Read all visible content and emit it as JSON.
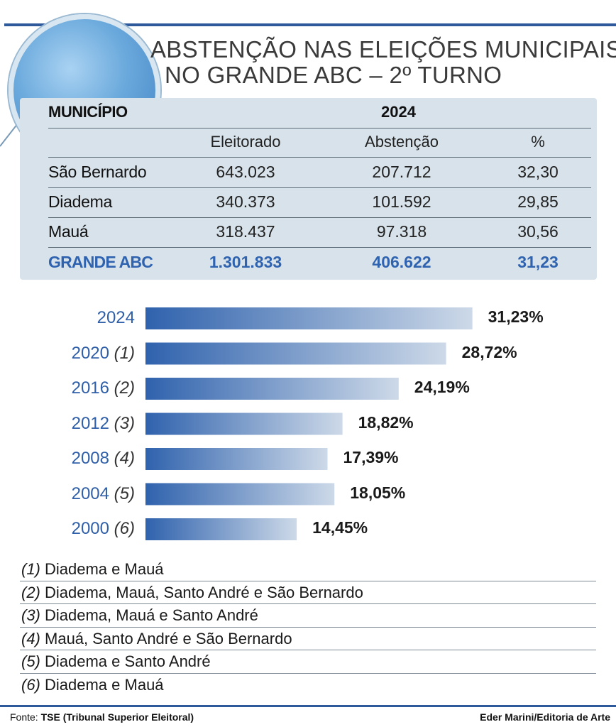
{
  "title_line1": "ABSTENÇÃO NAS ELEIÇÕES MUNICIPAIS",
  "title_line2": "NO GRANDE ABC – 2º TURNO",
  "table": {
    "header_municipio": "MUNICÍPIO",
    "header_year": "2024",
    "columns": [
      "Eleitorado",
      "Abstenção",
      "%"
    ],
    "rows": [
      {
        "name": "São Bernardo",
        "eleitorado": "643.023",
        "abstencao": "207.712",
        "pct": "32,30"
      },
      {
        "name": "Diadema",
        "eleitorado": "340.373",
        "abstencao": "101.592",
        "pct": "29,85"
      },
      {
        "name": "Mauá",
        "eleitorado": "318.437",
        "abstencao": "97.318",
        "pct": "30,56"
      }
    ],
    "total": {
      "name": "GRANDE ABC",
      "eleitorado": "1.301.833",
      "abstencao": "406.622",
      "pct": "31,23"
    }
  },
  "chart_data": {
    "type": "bar",
    "orientation": "horizontal",
    "categories": [
      "2024",
      "2020",
      "2016",
      "2012",
      "2008",
      "2004",
      "2000"
    ],
    "category_notes": [
      "",
      "(1)",
      "(2)",
      "(3)",
      "(4)",
      "(5)",
      "(6)"
    ],
    "values": [
      31.23,
      28.72,
      24.19,
      18.82,
      17.39,
      18.05,
      14.45
    ],
    "value_labels": [
      "31,23%",
      "28,72%",
      "24,19%",
      "18,82%",
      "17,39%",
      "18,05%",
      "14,45%"
    ],
    "bar_color_start": "#2f62ad",
    "bar_color_end": "#cdd9e8",
    "title": "",
    "xlabel": "",
    "ylabel": ""
  },
  "notes": [
    {
      "mark": "(1)",
      "text": "Diadema e Mauá"
    },
    {
      "mark": "(2)",
      "text": "Diadema, Mauá, Santo André e São Bernardo"
    },
    {
      "mark": "(3)",
      "text": "Diadema, Mauá e Santo André"
    },
    {
      "mark": "(4)",
      "text": "Mauá, Santo André e São Bernardo"
    },
    {
      "mark": "(5)",
      "text": "Diadema e Santo André"
    },
    {
      "mark": "(6)",
      "text": "Diadema e Mauá"
    }
  ],
  "footer": {
    "source_label": "Fonte:",
    "source_text": "TSE (Tribunal Superior Eleitoral)",
    "credit": "Eder Marini/Editoria de Arte"
  },
  "colors": {
    "accent": "#2e5a9c",
    "highlight_text": "#2f63b0",
    "table_bg": "#d7e2ea"
  }
}
